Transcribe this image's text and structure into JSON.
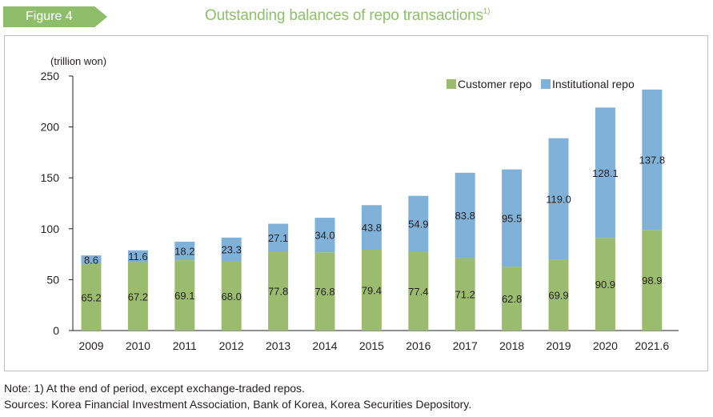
{
  "figure_label": "Figure 4",
  "title": "Outstanding balances of repo transactions",
  "title_superscript": "1)",
  "note": "Note: 1) At the end of period, except exchange-traded repos.",
  "sources": "Sources: Korea Financial Investment Association, Bank of Korea, Korea Securities Depository.",
  "chart_data": {
    "type": "bar",
    "stacked": true,
    "unit_label": "(trillion won)",
    "categories": [
      "2009",
      "2010",
      "2011",
      "2012",
      "2013",
      "2014",
      "2015",
      "2016",
      "2017",
      "2018",
      "2019",
      "2020",
      "2021.6"
    ],
    "series": [
      {
        "name": "Customer repo",
        "color": "#9bbb6e",
        "values": [
          65.2,
          67.2,
          69.1,
          68.0,
          77.8,
          76.8,
          79.4,
          77.4,
          71.2,
          62.8,
          69.9,
          90.9,
          98.9
        ]
      },
      {
        "name": "Institutional repo",
        "color": "#7fb1d9",
        "values": [
          8.6,
          11.6,
          18.2,
          23.3,
          27.1,
          34.0,
          43.8,
          54.9,
          83.8,
          95.5,
          119.0,
          128.1,
          137.8
        ]
      }
    ],
    "ylim": [
      0,
      250
    ],
    "yticks": [
      0,
      50,
      100,
      150,
      200,
      250
    ],
    "legend_position": "top-right",
    "grid": false
  }
}
